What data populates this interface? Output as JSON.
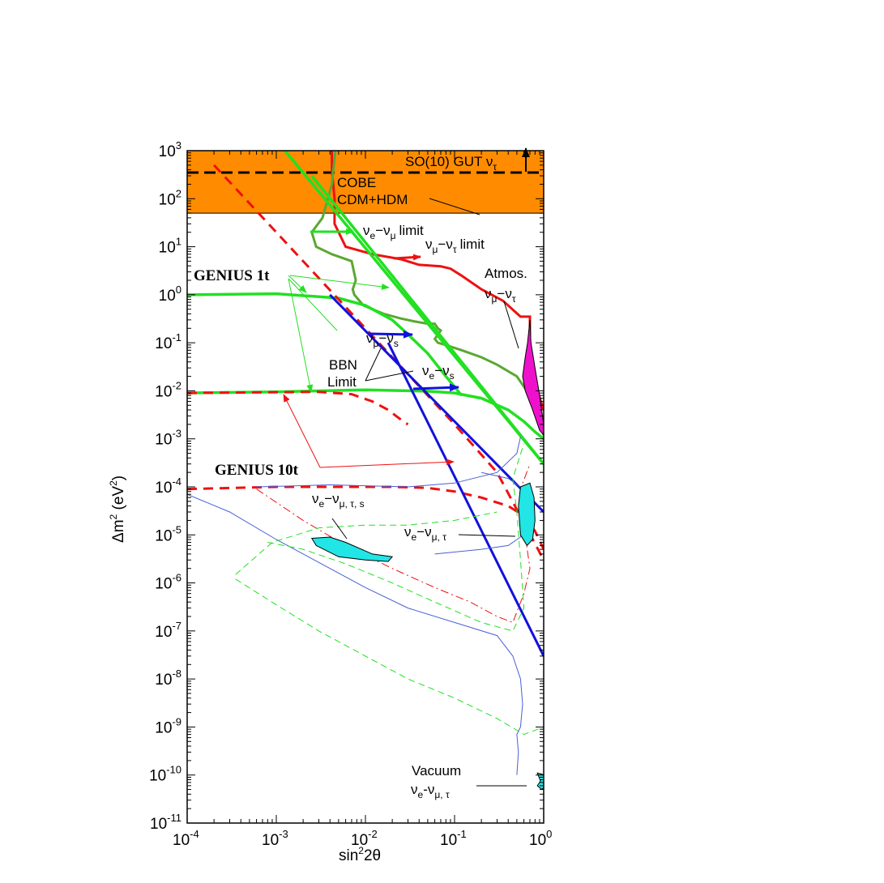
{
  "chart_data": {
    "type": "line",
    "title": "",
    "xscale": "log",
    "yscale": "log",
    "xlim": [
      0.0001,
      1
    ],
    "ylim": [
      1e-11,
      1000
    ],
    "grid": false,
    "x_tick_exponents": [
      "-4",
      "-3",
      "-2",
      "-1",
      "0"
    ],
    "y_tick_exponents": [
      "3",
      "2",
      "1",
      "0",
      "-1",
      "-2",
      "-3",
      "-4",
      "-5",
      "-6",
      "-7",
      "-8",
      "-9",
      "-10",
      "-11"
    ],
    "tick_base": "10",
    "xlabel": {
      "main": "sin",
      "sup": "2",
      "rest": "2θ"
    },
    "ylabel": {
      "main": "Δm",
      "sup": "2",
      "rest": " (eV",
      "sup2": "2",
      "end": ")"
    },
    "labels": {
      "so10": "SO(10) GUT ν",
      "so10_sub": "τ",
      "cobe": "COBE",
      "cdm": "CDM+HDM",
      "nue": "ν",
      "e": "e",
      "mu": "μ",
      "tau": "τ",
      "s": "s",
      "dash": "−",
      "limit": "limit",
      "genius1": "GENIUS 1t",
      "genius10": "GENIUS 10t",
      "atmos": "Atmos.",
      "bbn": "BBN",
      "limit_cap": "Limit",
      "mts": "μ, τ, s",
      "mt": "μ, τ",
      "vacuum": "Vacuum",
      "vac_dash": "-"
    },
    "colors": {
      "orange": "#ff8c00",
      "red": "#ee1111",
      "green": "#22e022",
      "darkgreen": "#5aa832",
      "blue": "#1111dd",
      "thinblue": "#4a5fd8",
      "cyan": "#22e5e5",
      "magenta": "#ee11cc",
      "black": "#000000"
    },
    "series": [
      {
        "key": "cobe_band",
        "type": "area",
        "x": [
          0.0001,
          1
        ],
        "y_low": 50,
        "y_high": 1000
      },
      {
        "key": "so10_line",
        "style": "black-dashed",
        "x": [
          0.0001,
          1
        ],
        "y": [
          350,
          350
        ]
      },
      {
        "key": "red_nu_mu_tau_limit",
        "style": "red-solid",
        "x": [
          0.0042,
          0.0042,
          0.0045,
          0.0045,
          0.006,
          0.012,
          0.025,
          0.04,
          0.07,
          0.09,
          0.12,
          0.2,
          0.35,
          0.55,
          0.7,
          0.7,
          0.75,
          0.85,
          1.0
        ],
        "y": [
          1000,
          400,
          100,
          30,
          10,
          7,
          5.5,
          4.2,
          3.9,
          3.5,
          2.5,
          1.3,
          0.75,
          0.35,
          0.35,
          0.1,
          0.03,
          0.01,
          0.004
        ]
      },
      {
        "key": "darkgreen_nu_e_mu_limit",
        "style": "darkgreen-solid",
        "x": [
          0.0046,
          0.0042,
          0.0033,
          0.0025,
          0.0028,
          0.0042,
          0.007,
          0.0078,
          0.0072,
          0.0075,
          0.0095,
          0.016,
          0.025,
          0.035,
          0.05,
          0.06,
          0.065,
          0.07,
          0.06,
          0.065,
          0.08,
          0.12,
          0.2,
          0.3,
          0.5,
          0.7,
          1.0
        ],
        "y": [
          1000,
          200,
          40,
          20,
          10,
          7,
          5,
          2,
          1.3,
          1,
          0.6,
          0.4,
          0.32,
          0.28,
          0.25,
          0.25,
          0.2,
          0.18,
          0.12,
          0.1,
          0.09,
          0.07,
          0.05,
          0.035,
          0.02,
          0.008,
          0.0012
        ]
      },
      {
        "key": "green_diagonal_1",
        "style": "green-solid",
        "x": [
          0.00125,
          1
        ],
        "y": [
          1000,
          0.0003
        ]
      },
      {
        "key": "green_diagonal_2",
        "style": "green-solid",
        "x": [
          0.0025,
          1
        ],
        "y": [
          300,
          0.0003
        ]
      },
      {
        "key": "green_genius1t_upper",
        "style": "green-solid",
        "x": [
          0.0001,
          0.001,
          0.005,
          0.01,
          0.02,
          0.03,
          0.05,
          0.08,
          0.12
        ],
        "y": [
          1.0,
          1.05,
          0.85,
          0.6,
          0.3,
          0.15,
          0.06,
          0.02,
          0.008
        ]
      },
      {
        "key": "green_genius1t_lower",
        "style": "green-solid",
        "x": [
          0.0001,
          0.001,
          0.01,
          0.05,
          0.1,
          0.2,
          0.4,
          0.6,
          0.8,
          1.0
        ],
        "y": [
          0.009,
          0.0095,
          0.0105,
          0.0098,
          0.009,
          0.007,
          0.004,
          0.0023,
          0.0014,
          0.001
        ]
      },
      {
        "key": "red_dashed_diagonal",
        "style": "red-dashed",
        "x": [
          0.0002,
          0.002,
          0.02,
          0.1,
          0.3,
          1.0
        ],
        "y": [
          500,
          5,
          0.05,
          0.002,
          0.0002,
          3e-06
        ]
      },
      {
        "key": "red_dashed_genius1t",
        "style": "red-dashed",
        "x": [
          0.0001,
          0.003,
          0.007,
          0.012,
          0.018,
          0.025,
          0.03
        ],
        "y": [
          0.009,
          0.0095,
          0.0085,
          0.006,
          0.004,
          0.0025,
          0.002
        ]
      },
      {
        "key": "red_dashed_genius10t",
        "style": "red-dashed",
        "x": [
          0.0001,
          0.001,
          0.006,
          0.02,
          0.05,
          0.1,
          0.2,
          0.4,
          0.6,
          0.8,
          1.0
        ],
        "y": [
          9e-05,
          0.0001,
          0.0001,
          0.0001,
          9.5e-05,
          8e-05,
          6e-05,
          4e-05,
          2.5e-05,
          1.2e-05,
          5e-06
        ]
      },
      {
        "key": "blue_nu_mu_s",
        "style": "blue-solid",
        "x": [
          0.004,
          1.0
        ],
        "y": [
          1.0,
          3e-05
        ]
      },
      {
        "key": "blue_nu_e_s",
        "style": "blue-solid",
        "x": [
          0.018,
          1.0
        ],
        "y": [
          0.1,
          3e-08
        ]
      },
      {
        "key": "blue_thin_msw",
        "style": "thin-blue",
        "x": [
          0.0001,
          0.0003,
          0.001,
          0.004,
          0.01,
          0.03,
          0.1,
          0.3,
          0.45,
          0.55,
          0.58,
          0.55,
          0.5,
          0.52,
          0.5
        ],
        "y": [
          7e-05,
          3e-05,
          8e-06,
          2e-06,
          8e-07,
          3e-07,
          1.5e-07,
          8e-08,
          3e-08,
          1e-08,
          3e-09,
          1e-09,
          7e-10,
          3e-10,
          1e-10
        ]
      },
      {
        "key": "green_dashed_contour",
        "style": "thin-green-dashed",
        "x": [
          0.00035,
          0.001,
          0.003,
          0.01,
          0.03,
          0.1,
          0.3,
          0.6,
          1.0
        ],
        "y": [
          1.2e-06,
          3.5e-07,
          1e-07,
          3e-08,
          1e-08,
          4e-09,
          1.5e-09,
          7e-10,
          1e-09
        ]
      },
      {
        "key": "vacuum_region",
        "style": "cyan-fill",
        "x": [
          0.85,
          1.0
        ],
        "y": [
          5e-11,
          1e-10
        ]
      }
    ]
  }
}
